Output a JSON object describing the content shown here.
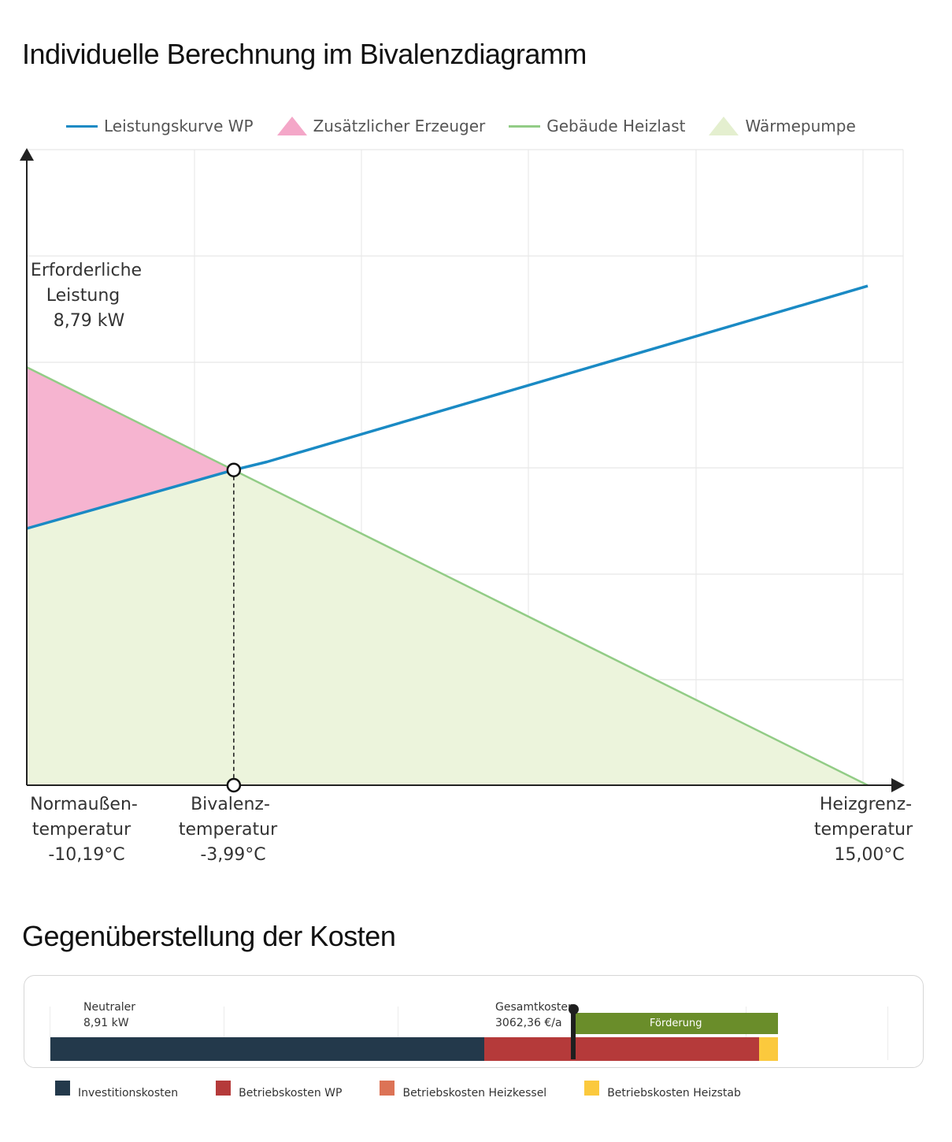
{
  "title": "Individuelle Berechnung im Bivalenzdiagramm",
  "cost_title": "Gegenüberstellung der Kosten",
  "legend": [
    {
      "label": "Leistungskurve WP",
      "kind": "line",
      "color": "#1a8ac4"
    },
    {
      "label": "Zusätzlicher Erzeuger",
      "kind": "area",
      "color": "#f4a7c8"
    },
    {
      "label": "Gebäude Heizlast",
      "kind": "line",
      "color": "#92cc86"
    },
    {
      "label": "Wärmepumpe",
      "kind": "area",
      "color": "#e4efcf"
    }
  ],
  "chart_data": [
    {
      "type": "area",
      "title": "Individuelle Berechnung im Bivalenzdiagramm",
      "x_unit": "°C",
      "y_unit": "kW",
      "xlim": [
        -10.19,
        15.0
      ],
      "ylim": [
        0,
        13.4
      ],
      "grid": true,
      "legend_position": "top",
      "series": [
        {
          "name": "Gebäude Heizlast",
          "x": [
            -10.19,
            15.0
          ],
          "y": [
            8.79,
            0
          ]
        },
        {
          "name": "Leistungskurve WP",
          "x": [
            -10.19,
            -3.99,
            -3.0,
            15.0
          ],
          "y": [
            5.4,
            6.63,
            6.8,
            10.5
          ]
        }
      ],
      "areas": [
        {
          "name": "Zusätzlicher Erzeuger",
          "between": [
            "Gebäude Heizlast",
            "Leistungskurve WP"
          ],
          "x_range": [
            -10.19,
            -3.99
          ]
        },
        {
          "name": "Wärmepumpe",
          "under": "Gebäude Heizlast",
          "x_range": [
            -10.19,
            15.0
          ]
        }
      ],
      "annotations": {
        "required_power": {
          "lines": [
            "Erforderliche",
            "Leistung",
            "8,79 kW"
          ]
        },
        "bivalence_point": {
          "x": -3.99,
          "y": 6.63
        }
      },
      "x_labels": [
        {
          "x": -10.19,
          "lines": [
            "Normaußen-",
            "temperatur",
            "-10,19°C"
          ]
        },
        {
          "x": -3.99,
          "lines": [
            "Bivalenz-",
            "temperatur",
            "-3,99°C"
          ]
        },
        {
          "x": 15.0,
          "lines": [
            "Heizgrenz-",
            "temperatur",
            "15,00°C"
          ]
        }
      ]
    },
    {
      "type": "bar",
      "orientation": "horizontal",
      "stacked": true,
      "title": "Gegenüberstellung der Kosten",
      "scale_max": 4900,
      "segments": [
        {
          "name": "Investitionskosten",
          "value": 2540,
          "color": "#23394b"
        },
        {
          "name": "Betriebskosten WP",
          "value": 1610,
          "color": "#b53a3a"
        },
        {
          "name": "Betriebskosten Heizstab",
          "value": 110,
          "color": "#fbc93d"
        }
      ],
      "subsidy": {
        "label": "Förderung",
        "start": 3062.36,
        "end": 4260,
        "color": "#6a8d2a"
      },
      "total": {
        "label": "Gesamtkosten",
        "value_text": "3062,36 €/a",
        "value": 3062.36
      },
      "neutral": {
        "label": "Neutraler",
        "value_text": "8,91 kW"
      },
      "legend": [
        {
          "name": "Investitionskosten",
          "color": "#23394b"
        },
        {
          "name": "Betriebskosten WP",
          "color": "#b53a3a"
        },
        {
          "name": "Betriebskosten Heizkessel",
          "color": "#dc7356"
        },
        {
          "name": "Betriebskosten Heizstab",
          "color": "#fbc93d"
        }
      ]
    }
  ]
}
